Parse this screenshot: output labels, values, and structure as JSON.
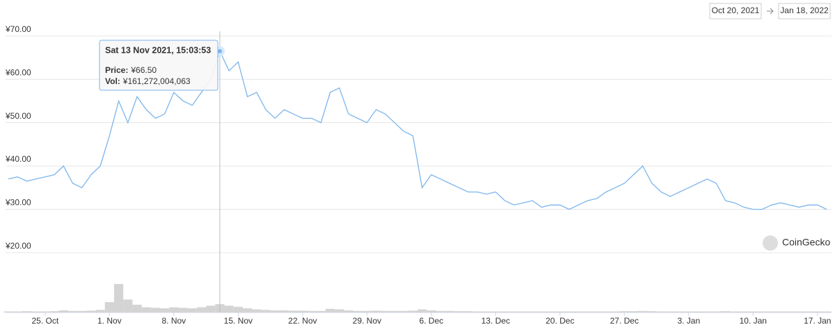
{
  "chart_data": {
    "type": "line",
    "date_range": {
      "from": "Oct 20, 2021",
      "to": "Jan 18, 2022"
    },
    "watermark": "CoinGecko",
    "categories": [
      null,
      null,
      null,
      null,
      "25. Oct",
      null,
      null,
      null,
      null,
      null,
      null,
      "1. Nov",
      null,
      null,
      null,
      null,
      null,
      null,
      "8. Nov",
      null,
      null,
      null,
      null,
      null,
      null,
      "15. Nov",
      null,
      null,
      null,
      null,
      null,
      null,
      "22. Nov",
      null,
      null,
      null,
      null,
      null,
      null,
      "29. Nov",
      null,
      null,
      null,
      null,
      null,
      null,
      "6. Dec",
      null,
      null,
      null,
      null,
      null,
      null,
      "13. Dec",
      null,
      null,
      null,
      null,
      null,
      null,
      "20. Dec",
      null,
      null,
      null,
      null,
      null,
      null,
      "27. Dec",
      null,
      null,
      null,
      null,
      null,
      null,
      "3. Jan",
      null,
      null,
      null,
      null,
      null,
      null,
      "10. Jan",
      null,
      null,
      null,
      null,
      null,
      null,
      "17. Jan",
      null
    ],
    "series": [
      {
        "color": "#7cb5ec",
        "values": [
          37,
          37.5,
          36.5,
          37,
          37.5,
          38,
          40,
          36,
          35,
          38,
          40,
          47,
          55,
          50,
          56,
          53,
          51,
          52,
          57,
          55,
          54,
          57,
          60,
          66.5,
          62,
          64,
          56,
          57,
          53,
          51,
          53,
          52,
          51,
          51,
          50,
          57,
          58,
          52,
          51,
          50,
          53,
          52,
          50,
          48,
          47,
          35,
          38,
          37,
          36,
          35,
          34,
          34,
          33.5,
          34,
          32,
          31,
          31.5,
          32,
          30.5,
          31,
          31,
          30,
          31,
          32,
          32.5,
          34,
          35,
          36,
          38,
          40,
          36,
          34,
          33,
          34,
          35,
          36,
          37,
          36,
          32,
          31.5,
          30.5,
          30,
          30,
          31,
          31.5,
          31,
          30.5,
          31,
          31,
          30
        ]
      },
      {
        "color": "#d4d4d4",
        "type": "bar",
        "axis": "y2",
        "values": [
          20000000000.0,
          20000000000.0,
          25000000000.0,
          20000000000.0,
          20000000000.0,
          25000000000.0,
          40000000000.0,
          30000000000.0,
          30000000000.0,
          35000000000.0,
          50000000000.0,
          200000000000.0,
          550000000000.0,
          250000000000.0,
          150000000000.0,
          100000000000.0,
          90000000000.0,
          80000000000.0,
          100000000000.0,
          90000000000.0,
          80000000000.0,
          100000000000.0,
          130000000000.0,
          161272004063,
          130000000000.0,
          110000000000.0,
          80000000000.0,
          60000000000.0,
          50000000000.0,
          40000000000.0,
          40000000000.0,
          35000000000.0,
          35000000000.0,
          30000000000.0,
          30000000000.0,
          70000000000.0,
          60000000000.0,
          40000000000.0,
          30000000000.0,
          30000000000.0,
          35000000000.0,
          30000000000.0,
          30000000000.0,
          30000000000.0,
          35000000000.0,
          60000000000.0,
          40000000000.0,
          30000000000.0,
          30000000000.0,
          25000000000.0,
          25000000000.0,
          20000000000.0,
          20000000000.0,
          20000000000.0,
          20000000000.0,
          20000000000.0,
          20000000000.0,
          20000000000.0,
          20000000000.0,
          20000000000.0,
          20000000000.0,
          20000000000.0,
          20000000000.0,
          20000000000.0,
          20000000000.0,
          20000000000.0,
          20000000000.0,
          25000000000.0,
          25000000000.0,
          30000000000.0,
          25000000000.0,
          20000000000.0,
          20000000000.0,
          20000000000.0,
          20000000000.0,
          20000000000.0,
          20000000000.0,
          20000000000.0,
          25000000000.0,
          20000000000.0,
          20000000000.0,
          20000000000.0,
          20000000000.0,
          20000000000.0,
          20000000000.0,
          20000000000.0,
          20000000000.0,
          20000000000.0,
          20000000000.0,
          20000000000.0
        ]
      }
    ],
    "ylim": [
      6.2,
      71.9
    ],
    "yticks": [
      {
        "value": 20,
        "label": "¥20.00"
      },
      {
        "value": 30,
        "label": "¥30.00"
      },
      {
        "value": 40,
        "label": "¥40.00"
      },
      {
        "value": 50,
        "label": "¥50.00"
      },
      {
        "value": 60,
        "label": "¥60.00"
      },
      {
        "value": 70,
        "label": "¥70.00"
      }
    ],
    "y2lim": [
      0,
      5500000000000.0
    ],
    "grid": true,
    "tooltip": {
      "index": 23,
      "title": "Sat 13 Nov 2021, 15:03:53",
      "items": [
        {
          "label": "Price:",
          "value": 66.5,
          "value_label": "¥66.50"
        },
        {
          "label": "Vol:",
          "value": 161272004063,
          "value_label": "¥161,272,004,063"
        }
      ]
    }
  }
}
